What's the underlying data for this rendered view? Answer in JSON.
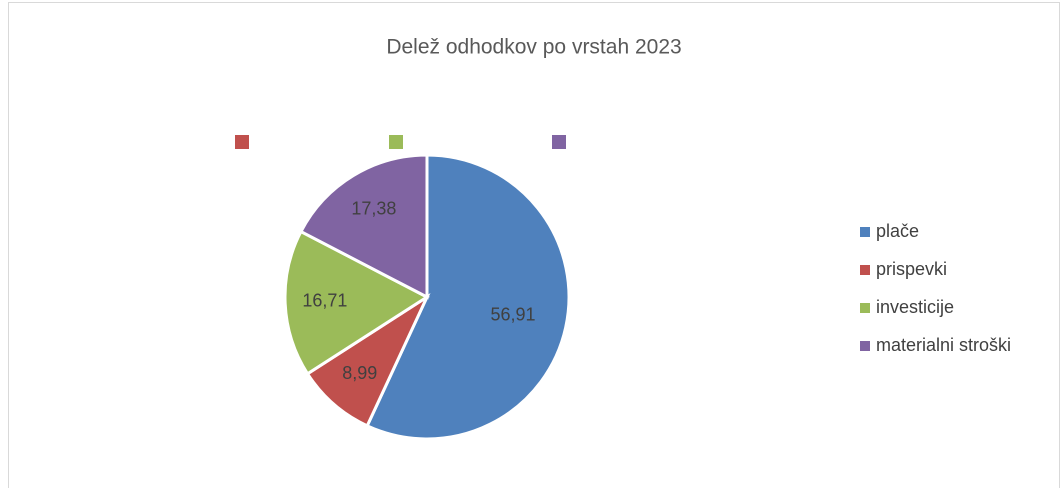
{
  "chart_data": {
    "type": "pie",
    "title": "Delež odhodkov po vrstah 2023",
    "categories": [
      "plače",
      "prispevki",
      "investicije",
      "materialni stroški"
    ],
    "values": [
      56.91,
      8.99,
      16.71,
      17.38
    ],
    "value_labels": [
      "56,91",
      "8,99",
      "16,71",
      "17,38"
    ],
    "colors": [
      "#4f81bd",
      "#c0504d",
      "#9bbb59",
      "#8064a2"
    ],
    "legend": "right"
  }
}
